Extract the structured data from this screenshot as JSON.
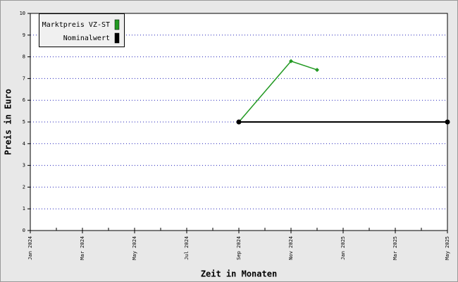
{
  "chart_data": {
    "type": "line",
    "xlabel": "Zeit in Monaten",
    "ylabel": "Preis in Euro",
    "xlim": [
      "2024-01",
      "2025-05"
    ],
    "xticks": [
      {
        "value": "2024-01",
        "label": "Jan 2024"
      },
      {
        "value": "2024-03",
        "label": "Mar 2024"
      },
      {
        "value": "2024-05",
        "label": "May 2024"
      },
      {
        "value": "2024-07",
        "label": "Jul 2024"
      },
      {
        "value": "2024-09",
        "label": "Sep 2024"
      },
      {
        "value": "2024-11",
        "label": "Nov 2024"
      },
      {
        "value": "2025-01",
        "label": "Jan 2025"
      },
      {
        "value": "2025-03",
        "label": "Mar 2025"
      },
      {
        "value": "2025-05",
        "label": "May 2025"
      }
    ],
    "ylim": [
      0,
      10
    ],
    "yticks": [
      0,
      1,
      2,
      3,
      4,
      5,
      6,
      7,
      8,
      9,
      10
    ],
    "grid": true,
    "legend": "top-left",
    "series": [
      {
        "name": "Marktpreis VZ-ST",
        "color": "#229922",
        "marker": "diamond",
        "x": [
          "2024-09",
          "2024-11",
          "2024-12"
        ],
        "values": [
          5,
          7.8,
          7.4
        ]
      },
      {
        "name": "Nominalwert",
        "color": "#000000",
        "marker": "circle",
        "x": [
          "2024-09",
          "2025-05"
        ],
        "values": [
          5,
          5
        ]
      }
    ]
  }
}
